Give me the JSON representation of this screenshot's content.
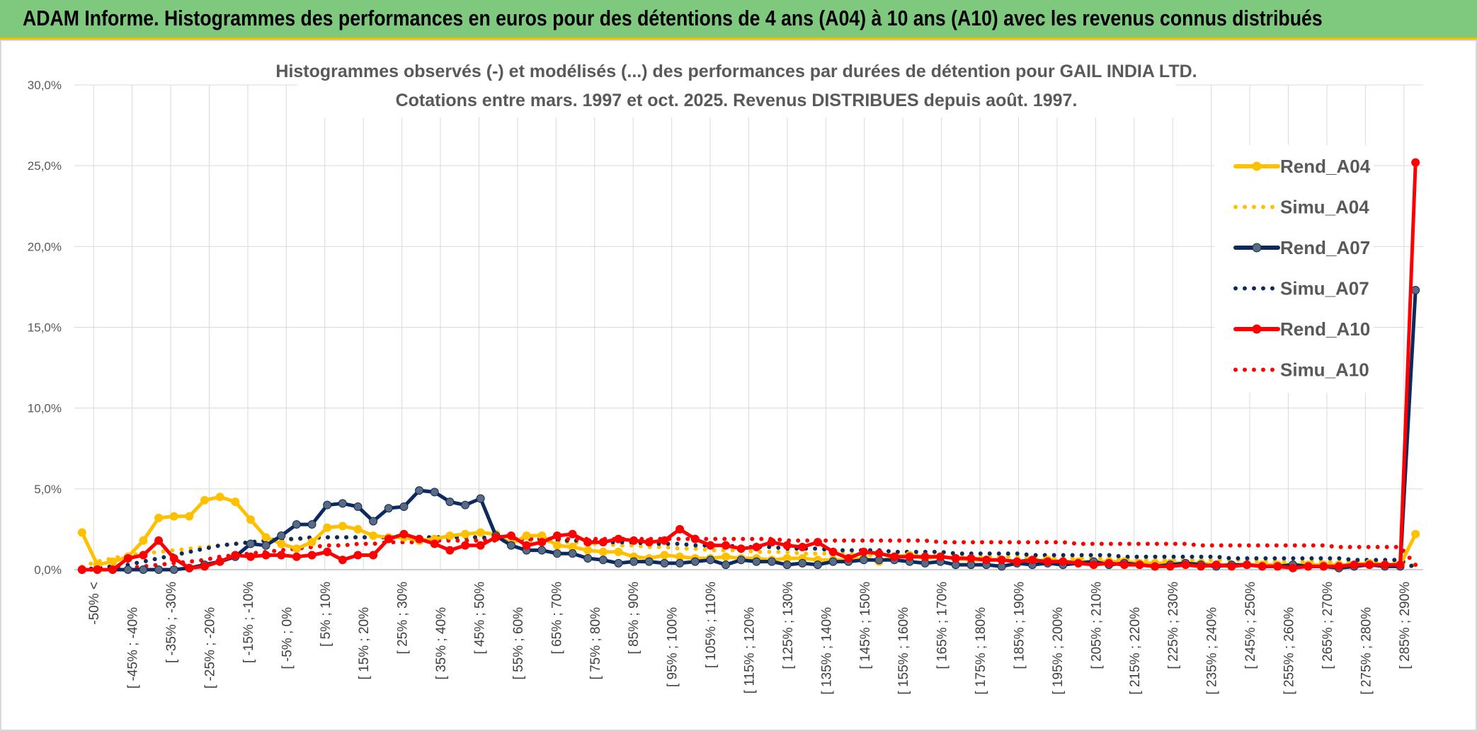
{
  "header": {
    "title": "ADAM Informe. Histogrammes des performances en euros pour des détentions de 4 ans (A04) à 10 ans (A10) avec les revenus connus distribués"
  },
  "chart_data": {
    "type": "line",
    "title": "Histogrammes observés (-) et modélisés (...) des performances par durées de détention pour GAIL INDIA LTD.",
    "subtitle": "Cotations entre mars. 1997 et oct. 2025. Revenus DISTRIBUES depuis août. 1997.",
    "ylim": [
      0,
      30
    ],
    "yticks": [
      "0,0%",
      "5,0%",
      "10,0%",
      "15,0%",
      "20,0%",
      "25,0%",
      "30,0%"
    ],
    "grid": true,
    "legend_position": "right",
    "x_labels": [
      "-50% <",
      "[ -45% ; -40%",
      "[ -35% ; -30%",
      "[ -25% ; -20%",
      "[ -15% ; -10%",
      "[ -5% ; 0%",
      "[ 5% ; 10%",
      "[ 15% ; 20%",
      "[ 25% ; 30%",
      "[ 35% ; 40%",
      "[ 45% ; 50%",
      "[ 55% ; 60%",
      "[ 65% ; 70%",
      "[ 75% ; 80%",
      "[ 85% ; 90%",
      "[ 95% ; 100%",
      "[ 105% ; 110%",
      "[ 115% ; 120%",
      "[ 125% ; 130%",
      "[ 135% ; 140%",
      "[ 145% ; 150%",
      "[ 155% ; 160%",
      "[ 165% ; 170%",
      "[ 175% ; 180%",
      "[ 185% ; 190%",
      "[ 195% ; 200%",
      "[ 205% ; 210%",
      "[ 215% ; 220%",
      "[ 225% ; 230%",
      "[ 235% ; 240%",
      "[ 245% ; 250%",
      "[ 255% ; 260%",
      "[ 265% ; 270%",
      "[ 275% ; 280%",
      "[ 285% ; 290%"
    ],
    "series": [
      {
        "name": "Rend_A04",
        "color": "#ffc000",
        "style": "solid",
        "markers": true,
        "values": [
          2.3,
          0.3,
          0.5,
          0.8,
          1.8,
          3.2,
          3.3,
          3.3,
          4.3,
          4.5,
          4.2,
          3.1,
          2.0,
          1.6,
          1.3,
          1.7,
          2.6,
          2.7,
          2.5,
          2.1,
          2.0,
          2.0,
          1.8,
          1.9,
          2.1,
          2.2,
          2.3,
          2.2,
          1.6,
          2.1,
          2.1,
          1.5,
          1.4,
          1.2,
          1.1,
          1.1,
          0.8,
          0.7,
          0.9,
          0.8,
          0.7,
          0.7,
          0.8,
          0.7,
          0.7,
          0.6,
          0.7,
          0.7,
          0.6,
          0.6,
          0.6,
          0.7,
          0.5,
          0.8,
          0.9,
          0.7,
          0.8,
          0.7,
          0.6,
          0.6,
          0.6,
          0.5,
          0.5,
          0.6,
          0.5,
          0.5,
          0.5,
          0.5,
          0.5,
          0.4,
          0.4,
          0.4,
          0.4,
          0.4,
          0.3,
          0.3,
          0.3,
          0.3,
          0.3,
          0.3,
          0.3,
          0.3,
          0.3,
          0.3,
          0.4,
          0.3,
          0.3,
          2.2
        ]
      },
      {
        "name": "Simu_A04",
        "color": "#ffc000",
        "style": "dotted",
        "markers": false,
        "values": [
          0.2,
          0.5,
          0.7,
          0.9,
          1.0,
          1.1,
          1.2,
          1.3,
          1.4,
          1.5,
          1.6,
          1.7,
          1.8,
          1.8,
          1.9,
          1.9,
          2.0,
          2.0,
          2.0,
          2.0,
          2.0,
          2.0,
          2.0,
          2.0,
          2.0,
          2.0,
          1.9,
          1.9,
          1.9,
          1.8,
          1.8,
          1.7,
          1.7,
          1.6,
          1.6,
          1.5,
          1.5,
          1.4,
          1.4,
          1.3,
          1.3,
          1.2,
          1.2,
          1.2,
          1.1,
          1.1,
          1.1,
          1.0,
          1.0,
          1.0,
          1.0,
          0.9,
          0.9,
          0.9,
          0.9,
          0.9,
          0.8,
          0.8,
          0.8,
          0.8,
          0.8,
          0.8,
          0.7,
          0.7,
          0.7,
          0.7,
          0.7,
          0.7,
          0.7,
          0.6,
          0.6,
          0.6,
          0.6,
          0.6,
          0.6,
          0.6,
          0.6,
          0.5,
          0.5,
          0.5,
          0.5,
          0.5,
          0.5,
          0.5,
          0.5,
          0.5,
          0.5,
          0.2
        ]
      },
      {
        "name": "Rend_A07",
        "color": "#0d2a5e",
        "style": "solid",
        "markers": true,
        "values": [
          0.0,
          0.0,
          0.0,
          0.0,
          0.0,
          0.0,
          0.0,
          0.1,
          0.3,
          0.5,
          0.8,
          1.6,
          1.5,
          2.1,
          2.8,
          2.8,
          4.0,
          4.1,
          3.9,
          3.0,
          3.8,
          3.9,
          4.9,
          4.8,
          4.2,
          4.0,
          4.4,
          2.1,
          1.5,
          1.2,
          1.2,
          1.0,
          1.0,
          0.7,
          0.6,
          0.4,
          0.5,
          0.5,
          0.4,
          0.4,
          0.5,
          0.6,
          0.3,
          0.6,
          0.5,
          0.5,
          0.3,
          0.4,
          0.3,
          0.5,
          0.5,
          0.6,
          0.6,
          0.6,
          0.5,
          0.4,
          0.5,
          0.3,
          0.3,
          0.3,
          0.2,
          0.4,
          0.3,
          0.4,
          0.3,
          0.4,
          0.5,
          0.3,
          0.4,
          0.3,
          0.2,
          0.3,
          0.4,
          0.3,
          0.2,
          0.3,
          0.3,
          0.2,
          0.2,
          0.3,
          0.2,
          0.2,
          0.1,
          0.2,
          0.3,
          0.2,
          0.2,
          17.3
        ]
      },
      {
        "name": "Simu_A07",
        "color": "#0d2a5e",
        "style": "dotted",
        "markers": false,
        "values": [
          0.0,
          0.1,
          0.2,
          0.3,
          0.5,
          0.7,
          0.9,
          1.1,
          1.3,
          1.5,
          1.6,
          1.7,
          1.8,
          1.9,
          1.9,
          2.0,
          2.0,
          2.0,
          2.0,
          2.0,
          2.0,
          2.0,
          2.0,
          2.0,
          2.0,
          2.0,
          2.0,
          1.9,
          1.9,
          1.9,
          1.9,
          1.8,
          1.8,
          1.8,
          1.7,
          1.7,
          1.7,
          1.6,
          1.6,
          1.6,
          1.5,
          1.5,
          1.5,
          1.4,
          1.4,
          1.4,
          1.3,
          1.3,
          1.3,
          1.2,
          1.2,
          1.2,
          1.2,
          1.1,
          1.1,
          1.1,
          1.1,
          1.0,
          1.0,
          1.0,
          1.0,
          1.0,
          0.9,
          0.9,
          0.9,
          0.9,
          0.9,
          0.9,
          0.8,
          0.8,
          0.8,
          0.8,
          0.8,
          0.8,
          0.8,
          0.7,
          0.7,
          0.7,
          0.7,
          0.7,
          0.7,
          0.7,
          0.7,
          0.6,
          0.6,
          0.6,
          0.6,
          0.1
        ]
      },
      {
        "name": "Rend_A10",
        "color": "#ff0000",
        "style": "solid",
        "markers": true,
        "values": [
          0.0,
          0.0,
          0.0,
          0.7,
          0.9,
          1.8,
          0.7,
          0.1,
          0.2,
          0.5,
          0.9,
          0.8,
          0.9,
          0.9,
          0.8,
          0.9,
          1.1,
          0.6,
          0.9,
          0.9,
          1.9,
          2.2,
          1.9,
          1.6,
          1.2,
          1.5,
          1.5,
          2.0,
          2.1,
          1.5,
          1.7,
          2.1,
          2.2,
          1.7,
          1.7,
          1.9,
          1.8,
          1.7,
          1.8,
          2.5,
          1.9,
          1.5,
          1.5,
          1.3,
          1.4,
          1.7,
          1.5,
          1.4,
          1.7,
          1.1,
          0.7,
          1.1,
          1.0,
          0.8,
          0.8,
          0.8,
          0.8,
          0.7,
          0.7,
          0.6,
          0.6,
          0.5,
          0.6,
          0.5,
          0.5,
          0.4,
          0.3,
          0.4,
          0.3,
          0.3,
          0.2,
          0.2,
          0.3,
          0.2,
          0.3,
          0.2,
          0.3,
          0.2,
          0.2,
          0.1,
          0.2,
          0.2,
          0.2,
          0.3,
          0.3,
          0.3,
          0.3,
          25.2
        ]
      },
      {
        "name": "Simu_A10",
        "color": "#ff0000",
        "style": "dotted",
        "markers": false,
        "values": [
          0.0,
          0.0,
          0.0,
          0.1,
          0.2,
          0.3,
          0.4,
          0.5,
          0.6,
          0.8,
          0.9,
          1.0,
          1.1,
          1.2,
          1.3,
          1.4,
          1.5,
          1.5,
          1.6,
          1.6,
          1.7,
          1.7,
          1.7,
          1.8,
          1.8,
          1.8,
          1.8,
          1.8,
          1.8,
          1.9,
          1.9,
          1.9,
          1.9,
          1.9,
          1.9,
          1.9,
          1.9,
          1.9,
          1.9,
          1.9,
          1.9,
          1.9,
          1.9,
          1.9,
          1.9,
          1.9,
          1.8,
          1.8,
          1.8,
          1.8,
          1.8,
          1.8,
          1.8,
          1.8,
          1.8,
          1.8,
          1.7,
          1.7,
          1.7,
          1.7,
          1.7,
          1.7,
          1.7,
          1.7,
          1.7,
          1.6,
          1.6,
          1.6,
          1.6,
          1.6,
          1.6,
          1.6,
          1.6,
          1.5,
          1.5,
          1.5,
          1.5,
          1.5,
          1.5,
          1.5,
          1.5,
          1.5,
          1.4,
          1.4,
          1.4,
          1.4,
          1.4,
          0.3
        ]
      }
    ]
  }
}
